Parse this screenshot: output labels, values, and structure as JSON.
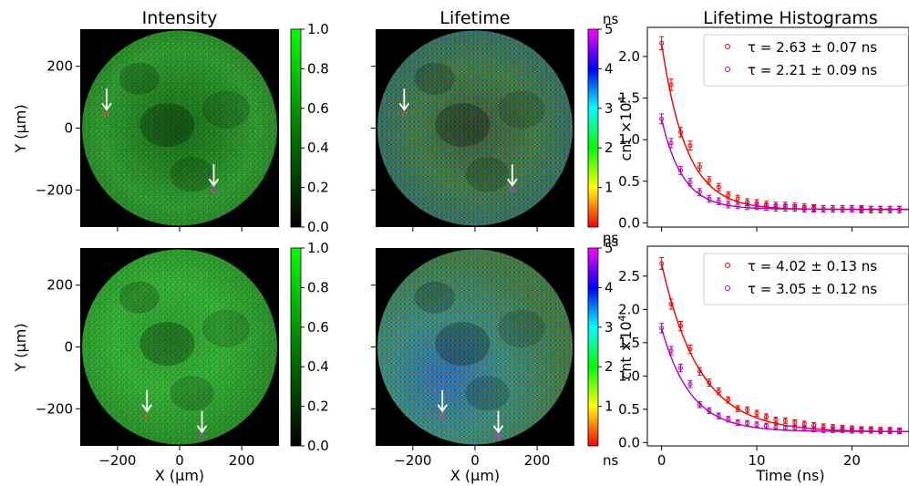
{
  "chart_data": [
    {
      "type": "heatmap",
      "panel": "top-left",
      "title": "Intensity",
      "ylabel": "Y (μm)",
      "xlabel": "",
      "xlim": [
        -320,
        320
      ],
      "ylim": [
        -320,
        320
      ],
      "xticks": [
        -200,
        0,
        200
      ],
      "yticks": [
        -200,
        0,
        200
      ],
      "show_xticklabels": false,
      "show_yticklabels": true,
      "colorbar": {
        "label": "",
        "min": 0.0,
        "max": 1.0,
        "ticks": [
          "0.0",
          "0.2",
          "0.4",
          "0.6",
          "0.8",
          "1.0"
        ],
        "colormap": "black-green"
      },
      "markers": [
        {
          "x": -235,
          "y": 45,
          "color": "#ff3b3b"
        },
        {
          "x": 110,
          "y": -200,
          "color": "#c23bc2"
        }
      ]
    },
    {
      "type": "heatmap",
      "panel": "top-middle",
      "title": "Lifetime",
      "xlabel": "",
      "ylabel": "",
      "xlim": [
        -320,
        320
      ],
      "ylim": [
        -320,
        320
      ],
      "xticks": [
        -200,
        0,
        200
      ],
      "yticks": [
        -200,
        0,
        200
      ],
      "show_xticklabels": false,
      "show_yticklabels": false,
      "colorbar": {
        "label": "ns",
        "min": 0,
        "max": 5,
        "ticks": [
          "1",
          "2",
          "3",
          "4",
          "5"
        ],
        "colormap": "rainbow"
      },
      "markers": [
        {
          "x": -228,
          "y": 45,
          "color": "#ff3b3b"
        },
        {
          "x": 120,
          "y": -200,
          "color": "#c23bc2"
        }
      ]
    },
    {
      "type": "scatter",
      "panel": "top-right",
      "title": "Lifetime Histograms",
      "xlabel": "",
      "ylabel": "cnt ×10^4",
      "xlim": [
        -1.5,
        26
      ],
      "ylim": [
        -0.05,
        2.35
      ],
      "xticks": [
        0,
        10,
        20
      ],
      "yticks": [
        0.0,
        0.5,
        1.0,
        1.5,
        2.0
      ],
      "ytick_labels": [
        "0.0",
        "0.5",
        "1.0",
        "1.5",
        "2.0"
      ],
      "show_xticklabels": false,
      "legend": "top-right",
      "series": [
        {
          "name": "τ = 2.63 ± 0.07 ns",
          "color": "#ee0000",
          "x": [
            0,
            1,
            2,
            3,
            4,
            5,
            6,
            7,
            8,
            9,
            10,
            11,
            12,
            13,
            14,
            15,
            16,
            17,
            18,
            19,
            20,
            21,
            22,
            23,
            24,
            25
          ],
          "y": [
            2.16,
            1.66,
            1.09,
            0.93,
            0.67,
            0.51,
            0.43,
            0.33,
            0.29,
            0.25,
            0.24,
            0.22,
            0.21,
            0.21,
            0.2,
            0.19,
            0.18,
            0.17,
            0.17,
            0.17,
            0.17,
            0.16,
            0.16,
            0.16,
            0.16,
            0.16
          ],
          "fit": {
            "a": 1.99,
            "tau": 2.63,
            "c": 0.16
          }
        },
        {
          "name": "τ = 2.21 ± 0.09 ns",
          "color": "#b000b0",
          "x": [
            0,
            1,
            2,
            3,
            4,
            5,
            6,
            7,
            8,
            9,
            10,
            11,
            12,
            13,
            14,
            15,
            16,
            17,
            18,
            19,
            20,
            21,
            22,
            23,
            24,
            25
          ],
          "y": [
            1.25,
            0.96,
            0.63,
            0.49,
            0.37,
            0.29,
            0.26,
            0.22,
            0.21,
            0.2,
            0.2,
            0.19,
            0.18,
            0.18,
            0.18,
            0.17,
            0.17,
            0.17,
            0.17,
            0.17,
            0.17,
            0.17,
            0.16,
            0.16,
            0.16,
            0.16
          ],
          "fit": {
            "a": 1.08,
            "tau": 2.21,
            "c": 0.165
          }
        }
      ]
    },
    {
      "type": "heatmap",
      "panel": "bottom-left",
      "title": "",
      "xlabel": "X (μm)",
      "ylabel": "Y (μm)",
      "xlim": [
        -320,
        320
      ],
      "ylim": [
        -320,
        320
      ],
      "xticks": [
        -200,
        0,
        200
      ],
      "yticks": [
        -200,
        0,
        200
      ],
      "show_xticklabels": true,
      "show_yticklabels": true,
      "colorbar": {
        "label": "",
        "min": 0.0,
        "max": 1.0,
        "ticks": [
          "0.0",
          "0.2",
          "0.4",
          "0.6",
          "0.8",
          "1.0"
        ],
        "colormap": "black-green"
      },
      "markers": [
        {
          "x": -105,
          "y": -222,
          "color": "#ff3b3b"
        },
        {
          "x": 72,
          "y": -290,
          "color": "#c23bc2"
        }
      ]
    },
    {
      "type": "heatmap",
      "panel": "bottom-middle",
      "title": "",
      "xlabel": "X (μm)",
      "ylabel": "",
      "xlim": [
        -320,
        320
      ],
      "ylim": [
        -320,
        320
      ],
      "xticks": [
        -200,
        0,
        200
      ],
      "yticks": [
        -200,
        0,
        200
      ],
      "show_xticklabels": true,
      "show_yticklabels": false,
      "colorbar": {
        "label": "ns",
        "min": 0,
        "max": 5,
        "ticks": [
          "1",
          "2",
          "3",
          "4",
          "5"
        ],
        "colormap": "rainbow"
      },
      "markers": [
        {
          "x": -105,
          "y": -222,
          "color": "#ff3b3b"
        },
        {
          "x": 75,
          "y": -290,
          "color": "#c23bc2"
        }
      ]
    },
    {
      "type": "scatter",
      "panel": "bottom-right",
      "title": "",
      "xlabel": "Time (ns)",
      "ylabel": "cnt ×10^4",
      "xlim": [
        -1.5,
        26
      ],
      "ylim": [
        -0.05,
        2.95
      ],
      "xticks": [
        0,
        10,
        20
      ],
      "yticks": [
        0.0,
        0.5,
        1.0,
        1.5,
        2.0,
        2.5
      ],
      "ytick_labels": [
        "0.0",
        "0.5",
        "1.0",
        "1.5",
        "2.0",
        "2.5"
      ],
      "show_xticklabels": true,
      "legend": "top-right",
      "series": [
        {
          "name": "τ = 4.02 ± 0.13 ns",
          "color": "#ee0000",
          "x": [
            0,
            1,
            2,
            3,
            4,
            5,
            6,
            7,
            8,
            9,
            10,
            11,
            12,
            13,
            14,
            15,
            16,
            17,
            18,
            19,
            20,
            21,
            22,
            23,
            24,
            25
          ],
          "y": [
            2.69,
            2.08,
            1.75,
            1.4,
            1.07,
            0.9,
            0.77,
            0.64,
            0.51,
            0.49,
            0.44,
            0.39,
            0.34,
            0.33,
            0.3,
            0.28,
            0.26,
            0.24,
            0.23,
            0.22,
            0.21,
            0.2,
            0.2,
            0.19,
            0.19,
            0.18
          ],
          "fit": {
            "a": 2.52,
            "tau": 4.02,
            "c": 0.16
          }
        },
        {
          "name": "τ = 3.05 ± 0.12 ns",
          "color": "#b000b0",
          "x": [
            0,
            1,
            2,
            3,
            4,
            5,
            6,
            7,
            8,
            9,
            10,
            11,
            12,
            13,
            14,
            15,
            16,
            17,
            18,
            19,
            20,
            21,
            22,
            23,
            24,
            25
          ],
          "y": [
            1.72,
            1.38,
            1.12,
            0.88,
            0.57,
            0.48,
            0.4,
            0.35,
            0.3,
            0.29,
            0.27,
            0.25,
            0.23,
            0.22,
            0.22,
            0.21,
            0.2,
            0.19,
            0.19,
            0.19,
            0.18,
            0.18,
            0.18,
            0.17,
            0.17,
            0.17
          ],
          "fit": {
            "a": 1.55,
            "tau": 3.05,
            "c": 0.165
          }
        }
      ]
    }
  ]
}
